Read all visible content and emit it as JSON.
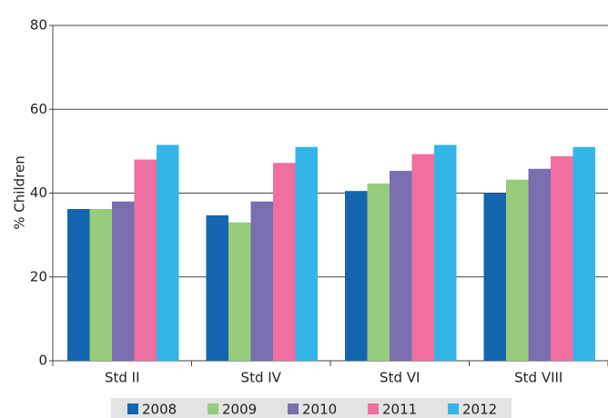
{
  "chart_data": {
    "type": "bar",
    "y_label": "% Children",
    "categories": [
      "Std II",
      "Std IV",
      "Std VI",
      "Std VIII"
    ],
    "series": [
      {
        "name": "2008",
        "color": "#1565b0",
        "values": [
          36.2,
          34.7,
          40.5,
          40
        ]
      },
      {
        "name": "2009",
        "color": "#96cc7c",
        "values": [
          36.2,
          33,
          42.3,
          43.2
        ]
      },
      {
        "name": "2010",
        "color": "#7a6db0",
        "values": [
          38,
          38,
          45.3,
          45.8
        ]
      },
      {
        "name": "2011",
        "color": "#ef6fa0",
        "values": [
          48,
          47.2,
          49.3,
          48.8
        ]
      },
      {
        "name": "2012",
        "color": "#33b5e8",
        "values": [
          51.5,
          51,
          51.5,
          51
        ]
      }
    ],
    "ylim": [
      0,
      80
    ],
    "yticks": [
      0,
      20,
      40,
      60,
      80
    ],
    "grid": true
  }
}
